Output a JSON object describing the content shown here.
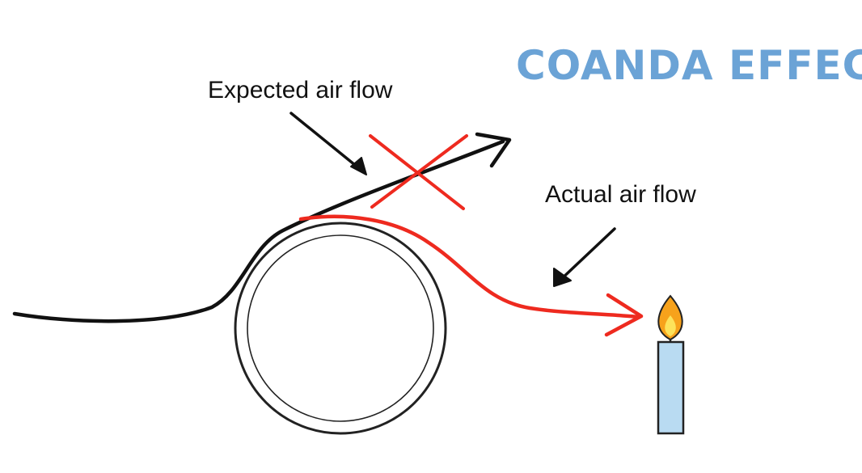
{
  "title": "COANDA EFFECT",
  "labels": {
    "expected": "Expected air flow",
    "actual": "Actual air flow"
  },
  "colors": {
    "title": "#6ba3d6",
    "expected_flow": "#111111",
    "actual_flow": "#ee2a1f",
    "cross": "#ee2a1f",
    "cylinder": "#222222",
    "candle_body": "#b9dbf2",
    "flame_outer": "#f7a21b",
    "flame_inner": "#fde25a"
  },
  "icons": {
    "cylinder": "cylinder-icon",
    "candle": "candle-icon",
    "cross": "cross-mark-icon"
  }
}
